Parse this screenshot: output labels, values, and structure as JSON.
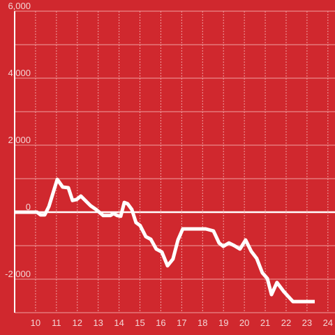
{
  "chart_data": {
    "type": "line",
    "x": [
      9,
      10.07,
      10.24,
      10.44,
      10.64,
      11.04,
      11.3,
      11.57,
      11.77,
      11.97,
      12.17,
      12.64,
      12.9,
      13.24,
      13.58,
      13.74,
      13.91,
      14.08,
      14.25,
      14.41,
      14.61,
      14.81,
      15.01,
      15.28,
      15.52,
      15.78,
      16.05,
      16.32,
      16.58,
      16.82,
      17.05,
      18.15,
      18.52,
      18.79,
      18.99,
      19.26,
      19.52,
      19.79,
      20.06,
      20.33,
      20.59,
      20.86,
      21.1,
      21.3,
      21.56,
      21.9,
      22.33,
      23.37
    ],
    "series": [
      {
        "color": "#ffffff",
        "values": [
          0,
          0,
          -80,
          -80,
          170,
          980,
          750,
          730,
          350,
          380,
          480,
          190,
          80,
          -100,
          -100,
          -40,
          -100,
          -120,
          290,
          250,
          80,
          -310,
          -400,
          -730,
          -810,
          -1100,
          -1190,
          -1600,
          -1400,
          -830,
          -500,
          -500,
          -560,
          -920,
          -1020,
          -920,
          -1000,
          -1100,
          -830,
          -1170,
          -1380,
          -1810,
          -1980,
          -2460,
          -2100,
          -2380,
          -2670,
          -2670
        ]
      }
    ],
    "xlim": [
      9,
      24.34
    ],
    "xticks": [
      10,
      11,
      12,
      13,
      14,
      15,
      16,
      17,
      18,
      19,
      20,
      21,
      22,
      23,
      24
    ],
    "ylim": [
      -3000,
      6000
    ],
    "yticks": [
      {
        "value": 6000,
        "label": "6,000"
      },
      {
        "value": 4000,
        "label": "4,000"
      },
      {
        "value": 2000,
        "label": "2,000"
      },
      0,
      {
        "value": -2000,
        "label": "-2,000"
      }
    ],
    "yminorgrid": [
      5000,
      3000,
      1000,
      -1000,
      -3000
    ],
    "grid": true
  }
}
